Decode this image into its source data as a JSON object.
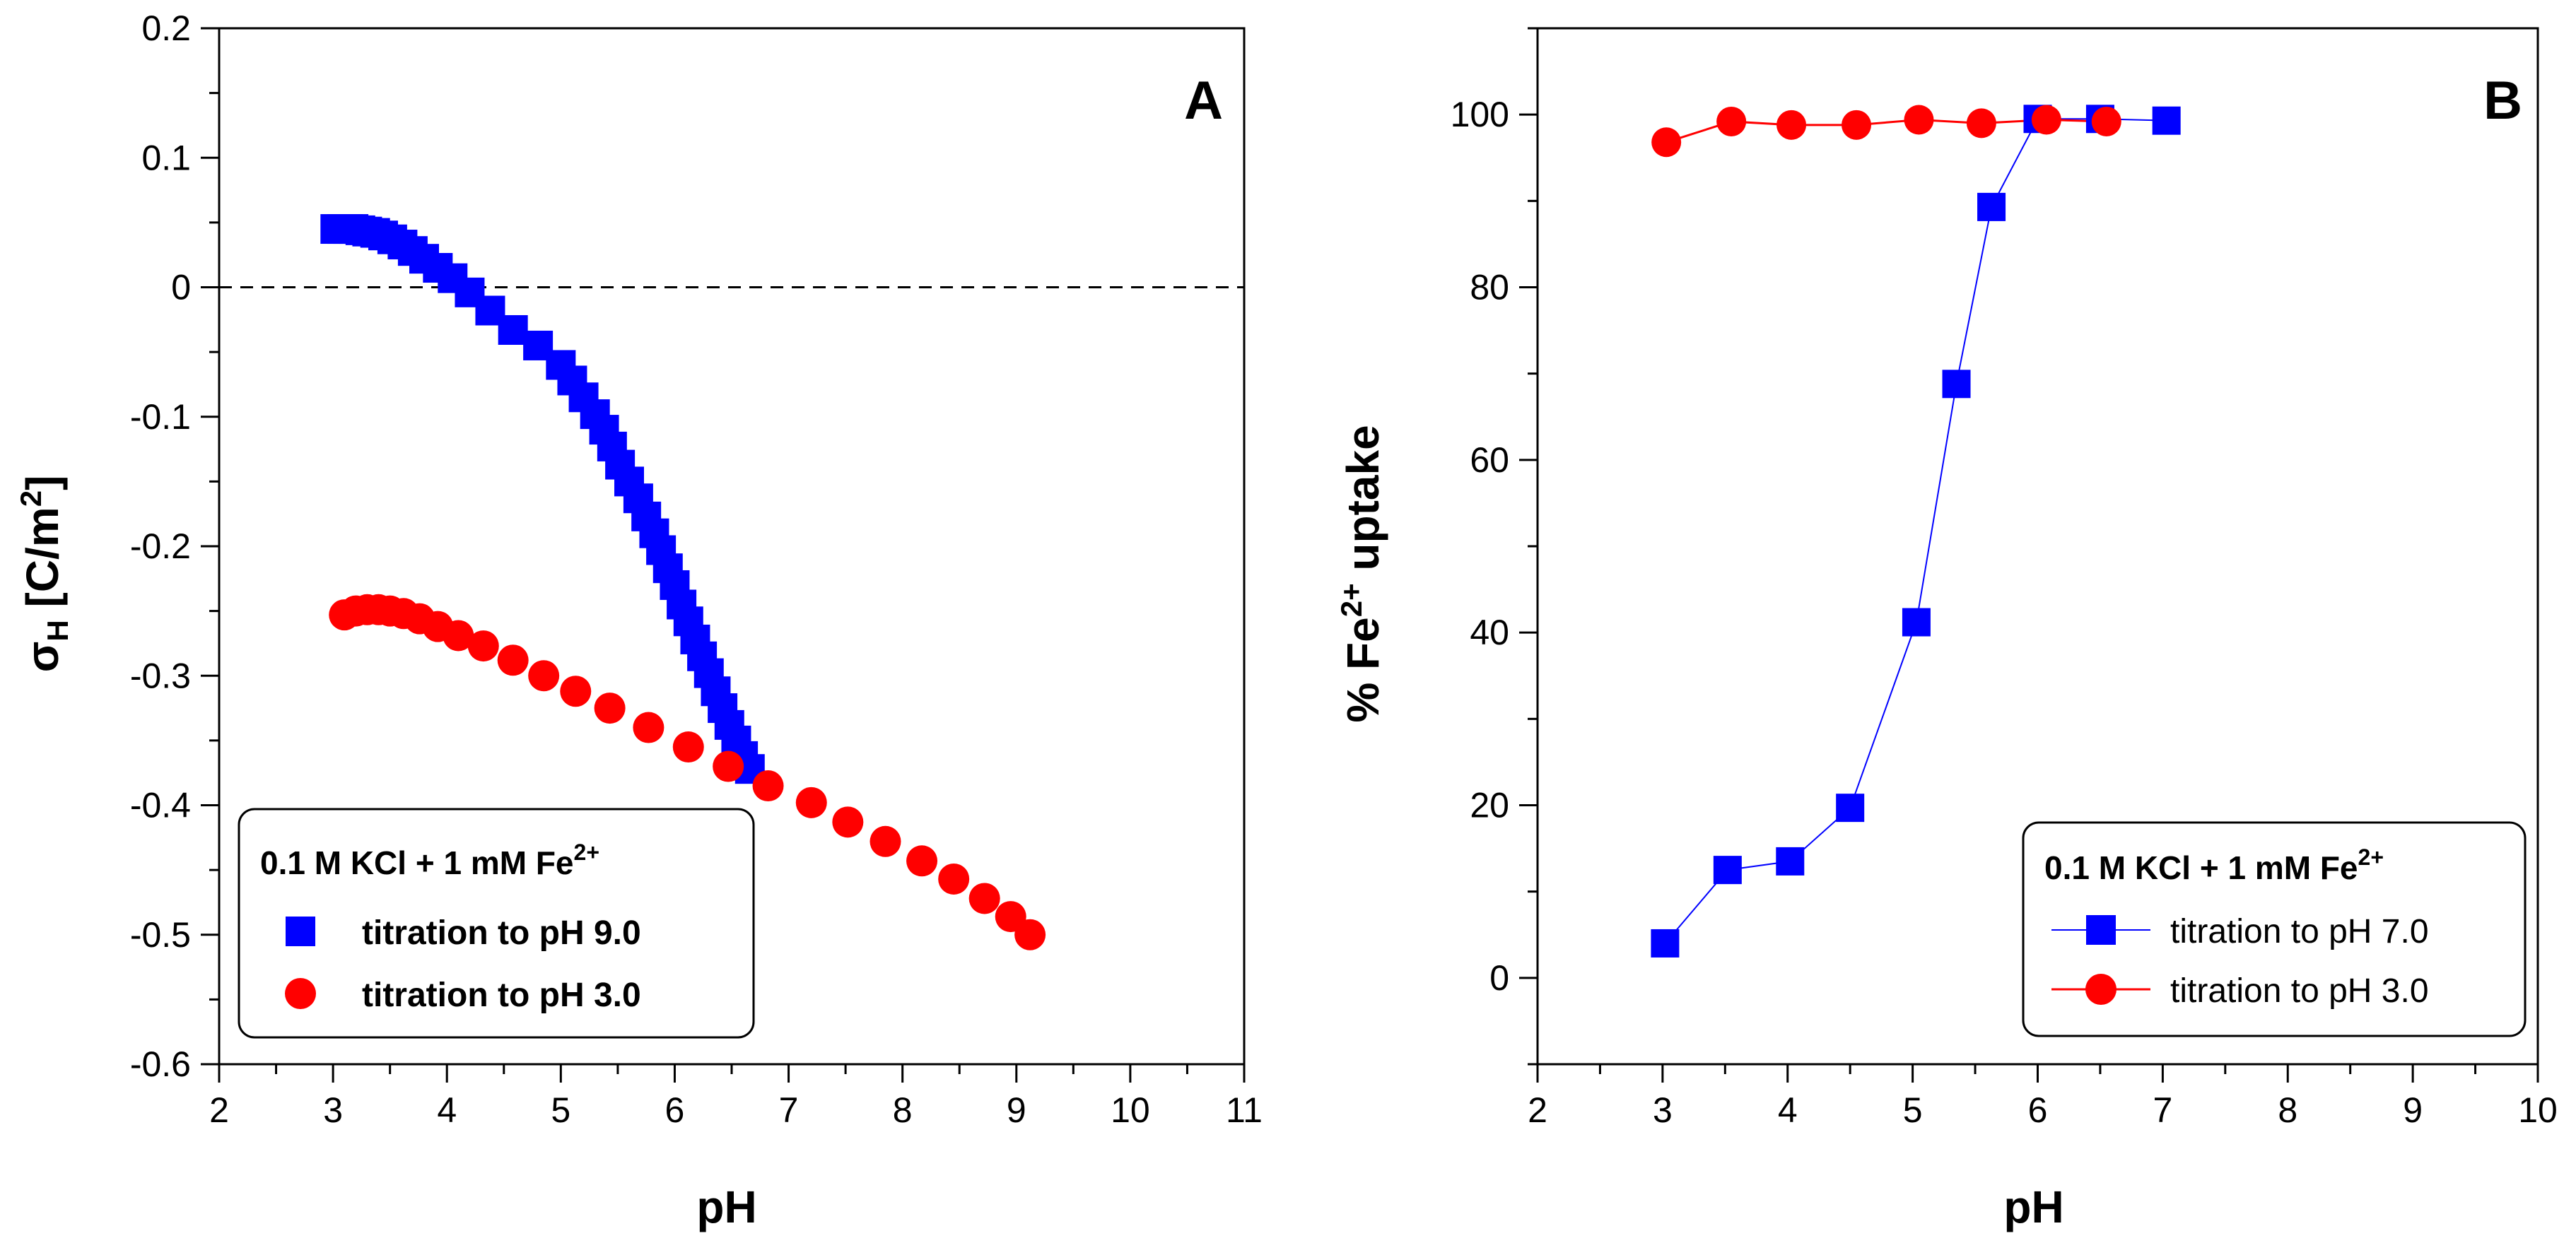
{
  "chart_data": [
    {
      "panel": "A",
      "type": "scatter",
      "panel_label": "A",
      "xlabel": "pH",
      "ylabel": {
        "main": "σ",
        "sub": "H",
        "rest": " [C/m",
        "sup": "2",
        "end": "]"
      },
      "xlim": [
        2,
        11
      ],
      "ylim": [
        -0.6,
        0.2
      ],
      "xticks": [
        2,
        3,
        4,
        5,
        6,
        7,
        8,
        9,
        10,
        11
      ],
      "xtick_labels": [
        "2",
        "3",
        "4",
        "5",
        "6",
        "7",
        "8",
        "9",
        "10",
        "11"
      ],
      "yticks": [
        -0.6,
        -0.5,
        -0.4,
        -0.3,
        -0.2,
        -0.1,
        0,
        0.1,
        0.2
      ],
      "ytick_labels": [
        "-0.6",
        "-0.5",
        "-0.4",
        "-0.3",
        "-0.2",
        "-0.1",
        "0",
        "0.1",
        "0.2"
      ],
      "reference_line": {
        "y": 0,
        "style": "dashed"
      },
      "legend": {
        "title": {
          "main": "0.1 M KCl + 1 mM Fe",
          "sup": "2+"
        },
        "entries": [
          "titration to pH 9.0",
          "titration to pH 3.0"
        ],
        "placement": "bottom-left"
      },
      "series": [
        {
          "name": "titration to pH 9.0",
          "marker": "square",
          "color": "#0000ff",
          "x": [
            3.02,
            3.08,
            3.13,
            3.18,
            3.24,
            3.3,
            3.37,
            3.44,
            3.52,
            3.61,
            3.7,
            3.8,
            3.92,
            4.05,
            4.2,
            4.38,
            4.58,
            4.8,
            5.0,
            5.1,
            5.2,
            5.3,
            5.38,
            5.45,
            5.52,
            5.6,
            5.68,
            5.75,
            5.82,
            5.88,
            5.94,
            6.0,
            6.06,
            6.12,
            6.18,
            6.24,
            6.3,
            6.36,
            6.42,
            6.48,
            6.54,
            6.6,
            6.66
          ],
          "y": [
            0.045,
            0.045,
            0.045,
            0.045,
            0.044,
            0.043,
            0.042,
            0.04,
            0.037,
            0.033,
            0.028,
            0.022,
            0.015,
            0.007,
            -0.004,
            -0.018,
            -0.033,
            -0.045,
            -0.06,
            -0.072,
            -0.085,
            -0.098,
            -0.11,
            -0.123,
            -0.137,
            -0.15,
            -0.163,
            -0.177,
            -0.19,
            -0.203,
            -0.217,
            -0.23,
            -0.245,
            -0.258,
            -0.272,
            -0.285,
            -0.298,
            -0.312,
            -0.325,
            -0.338,
            -0.35,
            -0.362,
            -0.372
          ]
        },
        {
          "name": "titration to pH 3.0",
          "marker": "circle",
          "color": "#ff0000",
          "x": [
            3.1,
            3.2,
            3.3,
            3.4,
            3.5,
            3.62,
            3.76,
            3.92,
            4.1,
            4.32,
            4.58,
            4.85,
            5.13,
            5.43,
            5.77,
            6.12,
            6.47,
            6.82,
            7.2,
            7.52,
            7.85,
            8.17,
            8.45,
            8.72,
            8.95,
            9.12
          ],
          "y": [
            -0.253,
            -0.25,
            -0.249,
            -0.249,
            -0.25,
            -0.252,
            -0.256,
            -0.262,
            -0.269,
            -0.277,
            -0.288,
            -0.3,
            -0.312,
            -0.325,
            -0.34,
            -0.355,
            -0.37,
            -0.385,
            -0.398,
            -0.413,
            -0.428,
            -0.443,
            -0.457,
            -0.472,
            -0.486,
            -0.5
          ]
        }
      ]
    },
    {
      "panel": "B",
      "type": "line",
      "panel_label": "B",
      "xlabel": "pH",
      "ylabel": {
        "main": "% Fe",
        "sup": "2+",
        "end": " uptake"
      },
      "xlim": [
        2,
        10
      ],
      "ylim": [
        -10,
        110
      ],
      "xticks": [
        2,
        3,
        4,
        5,
        6,
        7,
        8,
        9,
        10
      ],
      "xtick_labels": [
        "2",
        "3",
        "4",
        "5",
        "6",
        "7",
        "8",
        "9",
        "10"
      ],
      "yticks": [
        0,
        20,
        40,
        60,
        80,
        100
      ],
      "ytick_labels": [
        "0",
        "20",
        "40",
        "60",
        "80",
        "100"
      ],
      "legend": {
        "title": {
          "main": "0.1 M KCl + 1 mM Fe",
          "sup": "2+"
        },
        "entries": [
          "titration to pH 7.0",
          "titration to pH 3.0"
        ],
        "placement": "bottom-right"
      },
      "series": [
        {
          "name": "titration to pH 7.0",
          "marker": "square",
          "color": "#0000ff",
          "x": [
            3.02,
            3.52,
            4.02,
            4.5,
            5.03,
            5.35,
            5.63,
            6.0,
            6.5,
            7.03
          ],
          "y": [
            4,
            12.5,
            13.5,
            19.7,
            41.2,
            68.8,
            89.3,
            99.5,
            99.5,
            99.3
          ]
        },
        {
          "name": "titration to pH 3.0",
          "marker": "circle",
          "color": "#ff0000",
          "x": [
            3.03,
            3.55,
            4.03,
            4.55,
            5.05,
            5.55,
            6.07,
            6.55
          ],
          "y": [
            96.8,
            99.2,
            98.8,
            98.8,
            99.4,
            99.0,
            99.4,
            99.2
          ]
        }
      ]
    }
  ]
}
